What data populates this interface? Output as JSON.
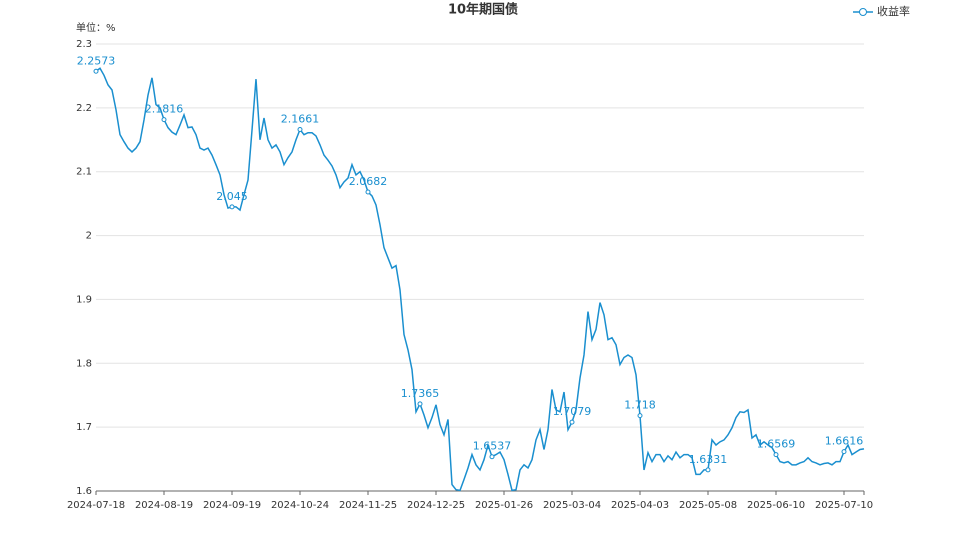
{
  "chart_data": {
    "type": "line",
    "title": "10年期国债",
    "y_label": "单位：%",
    "ylim": [
      1.6,
      2.3
    ],
    "yticks": [
      1.6,
      1.7,
      1.8,
      1.9,
      2,
      2.1,
      2.2,
      2.3
    ],
    "grid": true,
    "legend": "top-right",
    "categories": [
      "2024-07-18",
      null,
      null,
      null,
      null,
      null,
      null,
      null,
      null,
      null,
      null,
      null,
      null,
      null,
      null,
      null,
      null,
      "2024-08-19",
      null,
      null,
      null,
      null,
      null,
      null,
      null,
      null,
      null,
      null,
      null,
      null,
      null,
      null,
      null,
      null,
      "2024-09-19",
      null,
      null,
      null,
      null,
      null,
      null,
      null,
      null,
      null,
      null,
      null,
      null,
      null,
      null,
      null,
      null,
      "2024-10-24",
      null,
      null,
      null,
      null,
      null,
      null,
      null,
      null,
      null,
      null,
      null,
      null,
      null,
      null,
      null,
      null,
      "2024-11-25",
      null,
      null,
      null,
      null,
      null,
      null,
      null,
      null,
      null,
      null,
      null,
      null,
      null,
      null,
      null,
      null,
      "2024-12-25",
      null,
      null,
      null,
      null,
      null,
      null,
      null,
      null,
      null,
      null,
      null,
      null,
      null,
      null,
      null,
      null,
      "2025-01-26",
      null,
      null,
      null,
      null,
      null,
      null,
      null,
      null,
      null,
      null,
      null,
      null,
      null,
      null,
      null,
      null,
      "2025-03-04",
      null,
      null,
      null,
      null,
      null,
      null,
      null,
      null,
      null,
      null,
      null,
      null,
      null,
      null,
      null,
      null,
      "2025-04-03",
      null,
      null,
      null,
      null,
      null,
      null,
      null,
      null,
      null,
      null,
      null,
      null,
      null,
      null,
      null,
      null,
      "2025-05-08",
      null,
      null,
      null,
      null,
      null,
      null,
      null,
      null,
      null,
      null,
      null,
      null,
      null,
      null,
      null,
      null,
      "2025-06-10",
      null,
      null,
      null,
      null,
      null,
      null,
      null,
      null,
      null,
      null,
      null,
      null,
      null,
      null,
      null,
      null,
      "2025-07-10",
      null,
      null,
      null,
      null,
      null
    ],
    "series": [
      {
        "name": "收益率",
        "color": "#1a8fcf",
        "values": [
          2.2573,
          2.262,
          2.251,
          2.236,
          2.228,
          2.197,
          2.158,
          2.147,
          2.137,
          2.131,
          2.137,
          2.147,
          2.181,
          2.22,
          2.247,
          2.205,
          2.2,
          2.1816,
          2.169,
          2.162,
          2.158,
          2.173,
          2.189,
          2.169,
          2.17,
          2.158,
          2.137,
          2.134,
          2.137,
          2.126,
          2.111,
          2.095,
          2.064,
          2.043,
          2.045,
          2.045,
          2.04,
          2.064,
          2.087,
          2.165,
          2.245,
          2.15,
          2.184,
          2.15,
          2.137,
          2.142,
          2.131,
          2.111,
          2.122,
          2.131,
          2.15,
          2.1661,
          2.158,
          2.161,
          2.161,
          2.156,
          2.142,
          2.126,
          2.118,
          2.109,
          2.095,
          2.075,
          2.084,
          2.09,
          2.111,
          2.095,
          2.1,
          2.087,
          2.0682,
          2.062,
          2.048,
          2.017,
          1.981,
          1.965,
          1.949,
          1.953,
          1.915,
          1.845,
          1.821,
          1.79,
          1.724,
          1.7365,
          1.719,
          1.699,
          1.715,
          1.735,
          1.704,
          1.688,
          1.712,
          1.61,
          1.602,
          1.601,
          1.618,
          1.636,
          1.657,
          1.641,
          1.633,
          1.649,
          1.672,
          1.6537,
          1.657,
          1.661,
          1.649,
          1.626,
          1.601,
          1.602,
          1.633,
          1.641,
          1.636,
          1.649,
          1.68,
          1.696,
          1.665,
          1.696,
          1.759,
          1.727,
          1.724,
          1.755,
          1.696,
          1.7079,
          1.727,
          1.777,
          1.813,
          1.881,
          1.837,
          1.853,
          1.895,
          1.876,
          1.837,
          1.84,
          1.829,
          1.798,
          1.809,
          1.813,
          1.809,
          1.782,
          1.718,
          1.633,
          1.66,
          1.646,
          1.657,
          1.657,
          1.646,
          1.655,
          1.649,
          1.661,
          1.652,
          1.657,
          1.657,
          1.652,
          1.626,
          1.626,
          1.633,
          1.6331,
          1.68,
          1.672,
          1.677,
          1.68,
          1.688,
          1.699,
          1.715,
          1.724,
          1.723,
          1.727,
          1.683,
          1.688,
          1.672,
          1.677,
          1.672,
          1.668,
          1.6569,
          1.646,
          1.644,
          1.646,
          1.641,
          1.641,
          1.644,
          1.646,
          1.652,
          1.646,
          1.644,
          1.641,
          1.643,
          1.644,
          1.641,
          1.646,
          1.646,
          1.6616,
          1.672,
          1.657,
          1.661,
          1.665,
          1.666
        ],
        "value_labels": [
          "2.2573",
          null,
          null,
          null,
          null,
          null,
          null,
          null,
          null,
          null,
          null,
          null,
          null,
          null,
          null,
          null,
          null,
          "2.1816",
          null,
          null,
          null,
          null,
          null,
          null,
          null,
          null,
          null,
          null,
          null,
          null,
          null,
          null,
          null,
          null,
          "2.045",
          null,
          null,
          null,
          null,
          null,
          null,
          null,
          null,
          null,
          null,
          null,
          null,
          null,
          null,
          null,
          null,
          "2.1661",
          null,
          null,
          null,
          null,
          null,
          null,
          null,
          null,
          null,
          null,
          null,
          null,
          null,
          null,
          null,
          null,
          "2.0682",
          null,
          null,
          null,
          null,
          null,
          null,
          null,
          null,
          null,
          null,
          null,
          null,
          "1.7365",
          null,
          null,
          null,
          null,
          null,
          null,
          null,
          null,
          null,
          null,
          null,
          null,
          null,
          null,
          null,
          null,
          null,
          "1.6537",
          null,
          null,
          null,
          null,
          null,
          null,
          null,
          null,
          null,
          null,
          null,
          null,
          null,
          null,
          null,
          null,
          null,
          null,
          null,
          "1.7079",
          null,
          null,
          null,
          null,
          null,
          null,
          null,
          null,
          null,
          null,
          null,
          null,
          null,
          null,
          null,
          null,
          "1.718",
          null,
          null,
          null,
          null,
          null,
          null,
          null,
          null,
          null,
          null,
          null,
          null,
          null,
          null,
          null,
          null,
          "1.6331",
          null,
          null,
          null,
          null,
          null,
          null,
          null,
          null,
          null,
          null,
          null,
          null,
          null,
          null,
          null,
          null,
          "1.6569",
          null,
          null,
          null,
          null,
          null,
          null,
          null,
          null,
          null,
          null,
          null,
          null,
          null,
          null,
          null,
          null,
          "1.6616",
          null,
          null,
          null,
          null,
          null
        ]
      }
    ]
  }
}
